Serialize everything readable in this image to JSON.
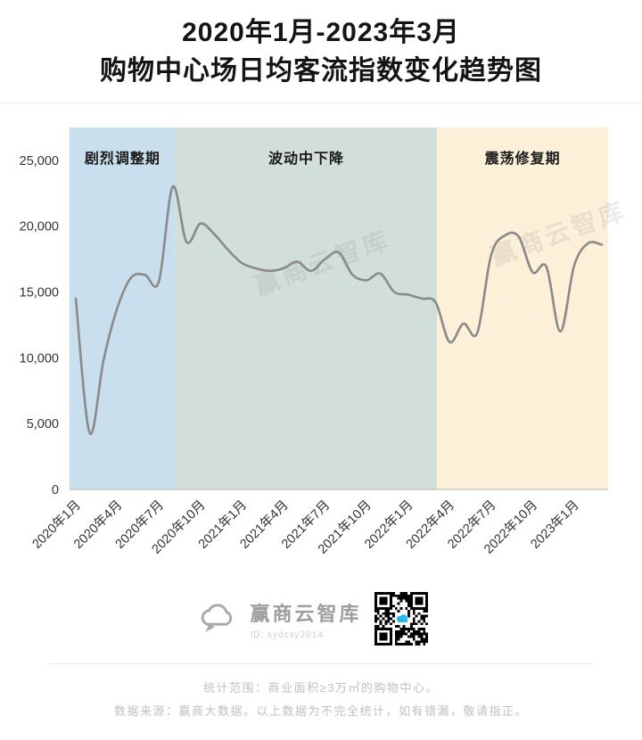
{
  "title": {
    "line1": "2020年1月-2023年3月",
    "line2": "购物中心场日均客流指数变化趋势图"
  },
  "chart_data": {
    "type": "line",
    "x": [
      "2020年1月",
      "2020年2月",
      "2020年3月",
      "2020年4月",
      "2020年5月",
      "2020年6月",
      "2020年7月",
      "2020年8月",
      "2020年9月",
      "2020年10月",
      "2020年11月",
      "2020年12月",
      "2021年1月",
      "2021年2月",
      "2021年3月",
      "2021年4月",
      "2021年5月",
      "2021年6月",
      "2021年7月",
      "2021年8月",
      "2021年9月",
      "2021年10月",
      "2021年11月",
      "2021年12月",
      "2022年1月",
      "2022年2月",
      "2022年3月",
      "2022年4月",
      "2022年5月",
      "2022年6月",
      "2022年7月",
      "2022年8月",
      "2022年9月",
      "2022年10月",
      "2022年11月",
      "2022年12月",
      "2023年1月",
      "2023年2月",
      "2023年3月"
    ],
    "values": [
      14500,
      4300,
      9800,
      13800,
      16100,
      16300,
      15800,
      23000,
      18800,
      20200,
      19400,
      18200,
      17200,
      16800,
      16600,
      16800,
      17300,
      16600,
      17500,
      18000,
      16300,
      15900,
      16400,
      15000,
      14800,
      14500,
      14200,
      11200,
      12600,
      11900,
      17800,
      19300,
      19200,
      16500,
      16900,
      12000,
      17000,
      18700,
      18600
    ],
    "x_tick_every": 3,
    "y_ticks": [
      0,
      5000,
      10000,
      15000,
      20000,
      25000
    ],
    "y_tick_labels": [
      "0",
      "5,000",
      "10,000",
      "15,000",
      "20,000",
      "25,000"
    ],
    "ylim": [
      0,
      27500
    ],
    "line_color": "#8a8a8a",
    "grid": false,
    "legend": "none",
    "regions": [
      {
        "label": "剧烈调整期",
        "start_index": -0.5,
        "end_index": 7.2,
        "color": "#c9dfee"
      },
      {
        "label": "波动中下降",
        "start_index": 7.2,
        "end_index": 26.1,
        "color": "#d2ded9"
      },
      {
        "label": "震荡修复期",
        "start_index": 26.1,
        "end_index": 38.5,
        "color": "#fcf0d9"
      }
    ],
    "watermark": "赢商云智库"
  },
  "footer": {
    "brand": "赢商云智库",
    "brand_id": "ID: sydcxy2014",
    "note1": "统计范围：商业面积≥3万㎡的购物中心。",
    "note2": "数据来源：赢商大数据。以上数据为不完全统计，如有错漏，敬请指正。"
  },
  "icons": {
    "brand_logo": "cloud-icon",
    "qr": "qr-code"
  }
}
